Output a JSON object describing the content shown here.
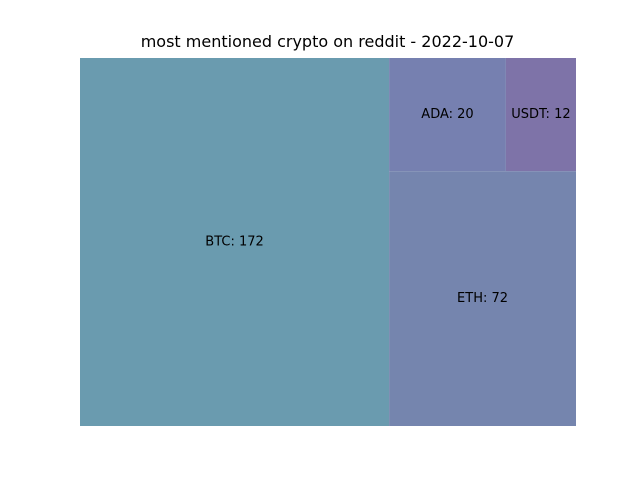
{
  "chart_data": {
    "type": "treemap",
    "title": "most mentioned crypto on reddit - 2022-10-07",
    "items": [
      {
        "name": "BTC",
        "value": 172,
        "label": "BTC: 172",
        "color": "#6a9baf"
      },
      {
        "name": "ETH",
        "value": 72,
        "label": "ETH: 72",
        "color": "#7585ae"
      },
      {
        "name": "ADA",
        "value": 20,
        "label": "ADA: 20",
        "color": "#7680b0"
      },
      {
        "name": "USDT",
        "value": 12,
        "label": "USDT: 12",
        "color": "#7e73a8"
      }
    ]
  }
}
